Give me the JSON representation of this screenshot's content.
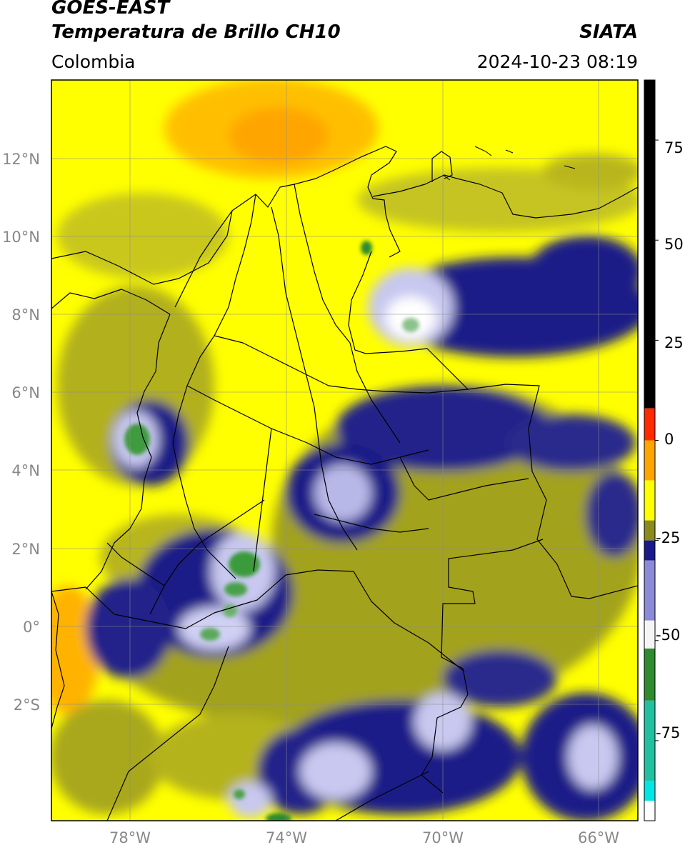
{
  "header": {
    "satellite": "GOES-EAST",
    "product": "Temperatura de Brillo CH10",
    "organization": "SIATA",
    "region": "Colombia",
    "timestamp": "2024-10-23 08:19"
  },
  "map": {
    "lat_labels": [
      "12°N",
      "10°N",
      "8°N",
      "6°N",
      "4°N",
      "2°N",
      "0°",
      "2°S"
    ],
    "lon_labels": [
      "78°W",
      "74°W",
      "70°W",
      "66°W"
    ]
  },
  "colorbar": {
    "tick_labels": [
      "75",
      "50",
      "25",
      "0",
      "-25",
      "-50",
      "-75"
    ],
    "segments": [
      {
        "from": 90,
        "to": 8,
        "color": "#000000"
      },
      {
        "from": 8,
        "to": 0,
        "color": "#ff2a00"
      },
      {
        "from": 0,
        "to": -10,
        "color": "#ffa500"
      },
      {
        "from": -10,
        "to": -20,
        "color": "#ffff00"
      },
      {
        "from": -20,
        "to": -25,
        "color": "#8a8a1e"
      },
      {
        "from": -25,
        "to": -30,
        "color": "#1a1a8a"
      },
      {
        "from": -30,
        "to": -45,
        "color": "#8a8ad8"
      },
      {
        "from": -45,
        "to": -52,
        "color": "#f5f5f5"
      },
      {
        "from": -52,
        "to": -65,
        "color": "#2e8b2e"
      },
      {
        "from": -65,
        "to": -85,
        "color": "#20c0a0"
      },
      {
        "from": -85,
        "to": -90,
        "color": "#00e5e5"
      },
      {
        "from": -90,
        "to": -95,
        "color": "#ffffff"
      }
    ]
  },
  "colors": {
    "bright_yellow": "#ffff00",
    "olive": "#a3a21c",
    "orange": "#ffaa00",
    "navy": "#1a1a8a",
    "lavender": "#c8c8f0",
    "green": "#3a9a3a",
    "border": "#000000"
  }
}
